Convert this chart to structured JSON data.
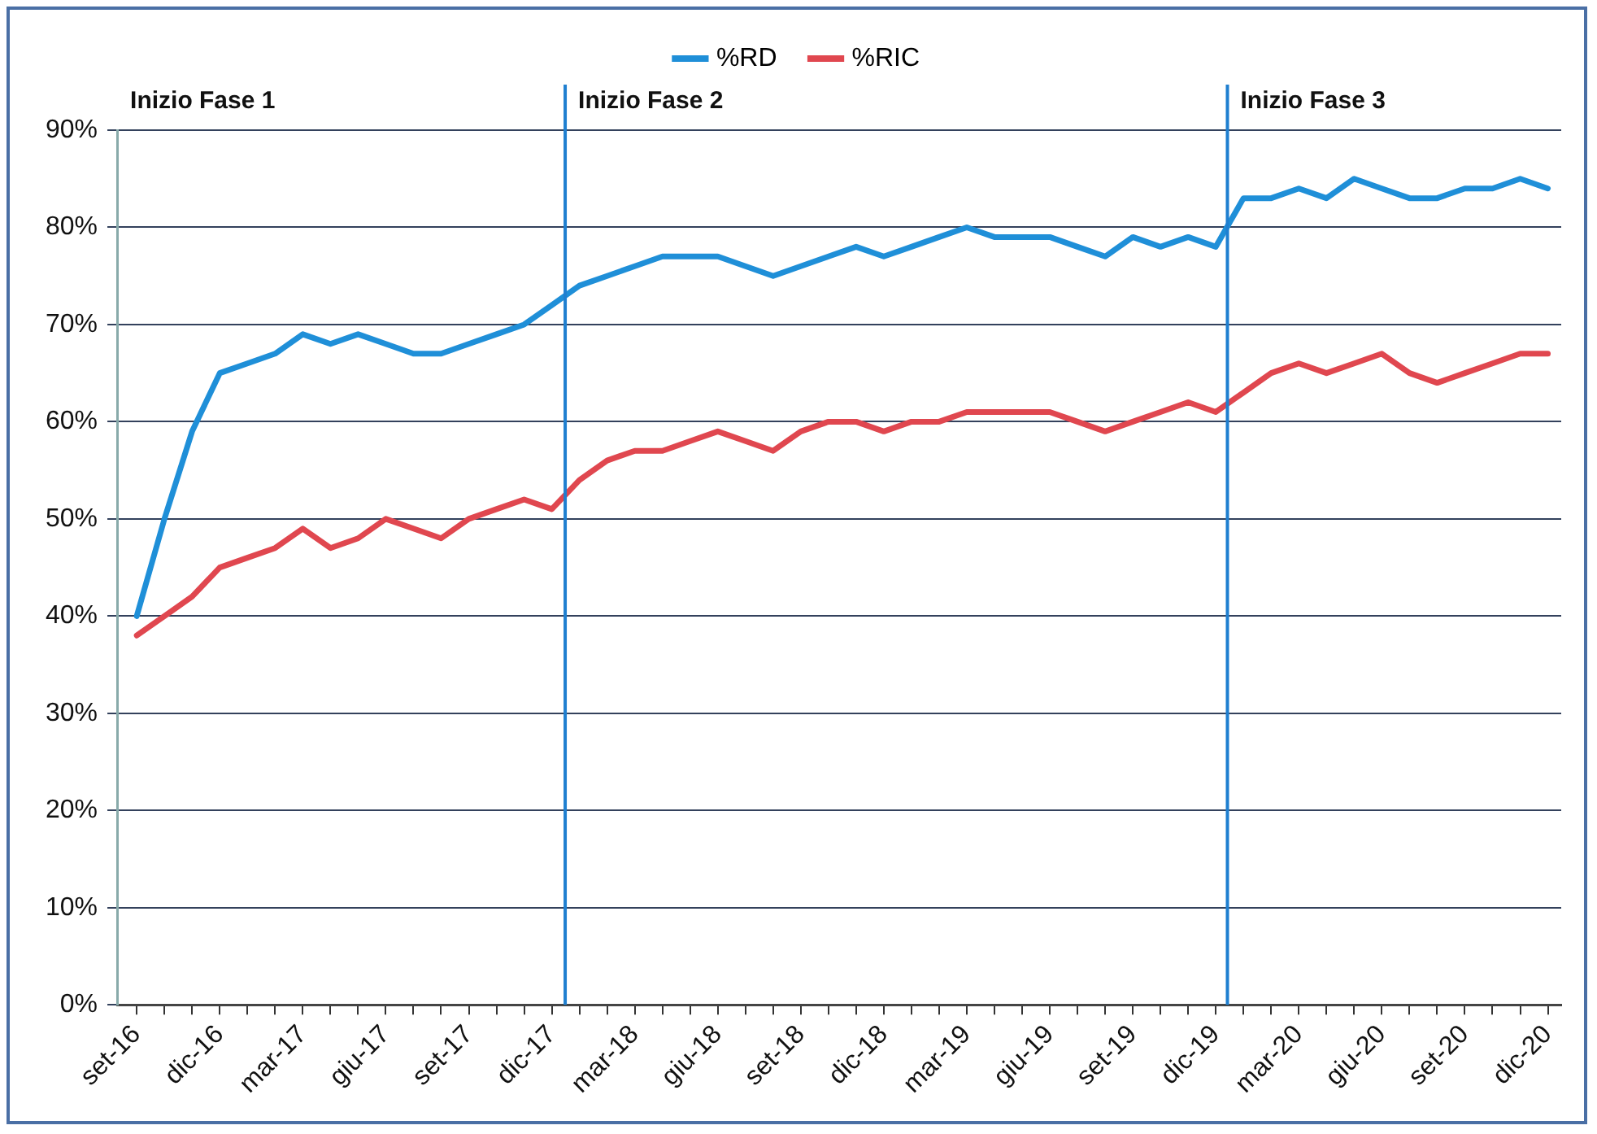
{
  "chart_data": {
    "type": "line",
    "x": [
      "2016-09",
      "2016-10",
      "2016-11",
      "2016-12",
      "2017-01",
      "2017-02",
      "2017-03",
      "2017-04",
      "2017-05",
      "2017-06",
      "2017-07",
      "2017-08",
      "2017-09",
      "2017-10",
      "2017-11",
      "2017-12",
      "2018-01",
      "2018-02",
      "2018-03",
      "2018-04",
      "2018-05",
      "2018-06",
      "2018-07",
      "2018-08",
      "2018-09",
      "2018-10",
      "2018-11",
      "2018-12",
      "2019-01",
      "2019-02",
      "2019-03",
      "2019-04",
      "2019-05",
      "2019-06",
      "2019-07",
      "2019-08",
      "2019-09",
      "2019-10",
      "2019-11",
      "2019-12",
      "2020-01",
      "2020-02",
      "2020-03",
      "2020-04",
      "2020-05",
      "2020-06",
      "2020-07",
      "2020-08",
      "2020-09",
      "2020-10",
      "2020-11",
      "2020-12"
    ],
    "series": [
      {
        "name": "%RD",
        "color": "#1f8fd8",
        "values": [
          40,
          50,
          59,
          65,
          66,
          67,
          69,
          68,
          69,
          68,
          67,
          67,
          68,
          69,
          70,
          72,
          74,
          75,
          76,
          77,
          77,
          77,
          76,
          75,
          76,
          77,
          78,
          77,
          78,
          79,
          80,
          79,
          79,
          79,
          78,
          77,
          79,
          78,
          79,
          78,
          83,
          83,
          84,
          83,
          85,
          84,
          83,
          83,
          84,
          84,
          85,
          84
        ]
      },
      {
        "name": "%RIC",
        "color": "#e0474f",
        "values": [
          38,
          40,
          42,
          45,
          46,
          47,
          49,
          47,
          48,
          50,
          49,
          48,
          50,
          51,
          52,
          51,
          54,
          56,
          57,
          57,
          58,
          59,
          58,
          57,
          59,
          60,
          60,
          59,
          60,
          60,
          61,
          61,
          61,
          61,
          60,
          59,
          60,
          61,
          62,
          61,
          63,
          65,
          66,
          65,
          66,
          67,
          65,
          64,
          65,
          66,
          67,
          67
        ]
      }
    ],
    "xlim": [
      "2016-08-10",
      "2020-12-16"
    ],
    "xticks": [
      {
        "value": "2016-09",
        "label": "set-16"
      },
      {
        "value": "2016-10",
        "label": null
      },
      {
        "value": "2016-11",
        "label": null
      },
      {
        "value": "2016-12",
        "label": "dic-16"
      },
      {
        "value": "2017-01",
        "label": null
      },
      {
        "value": "2017-02",
        "label": null
      },
      {
        "value": "2017-03",
        "label": "mar-17"
      },
      {
        "value": "2017-04",
        "label": null
      },
      {
        "value": "2017-05",
        "label": null
      },
      {
        "value": "2017-06",
        "label": "giu-17"
      },
      {
        "value": "2017-07",
        "label": null
      },
      {
        "value": "2017-08",
        "label": null
      },
      {
        "value": "2017-09",
        "label": "set-17"
      },
      {
        "value": "2017-10",
        "label": null
      },
      {
        "value": "2017-11",
        "label": null
      },
      {
        "value": "2017-12",
        "label": "dic-17"
      },
      {
        "value": "2018-01",
        "label": null
      },
      {
        "value": "2018-02",
        "label": null
      },
      {
        "value": "2018-03",
        "label": "mar-18"
      },
      {
        "value": "2018-04",
        "label": null
      },
      {
        "value": "2018-05",
        "label": null
      },
      {
        "value": "2018-06",
        "label": "giu-18"
      },
      {
        "value": "2018-07",
        "label": null
      },
      {
        "value": "2018-08",
        "label": null
      },
      {
        "value": "2018-09",
        "label": "set-18"
      },
      {
        "value": "2018-10",
        "label": null
      },
      {
        "value": "2018-11",
        "label": null
      },
      {
        "value": "2018-12",
        "label": "dic-18"
      },
      {
        "value": "2019-01",
        "label": null
      },
      {
        "value": "2019-02",
        "label": null
      },
      {
        "value": "2019-03",
        "label": "mar-19"
      },
      {
        "value": "2019-04",
        "label": null
      },
      {
        "value": "2019-05",
        "label": null
      },
      {
        "value": "2019-06",
        "label": "giu-19"
      },
      {
        "value": "2019-07",
        "label": null
      },
      {
        "value": "2019-08",
        "label": null
      },
      {
        "value": "2019-09",
        "label": "set-19"
      },
      {
        "value": "2019-10",
        "label": null
      },
      {
        "value": "2019-11",
        "label": null
      },
      {
        "value": "2019-12",
        "label": "dic-19"
      },
      {
        "value": "2020-01",
        "label": null
      },
      {
        "value": "2020-02",
        "label": null
      },
      {
        "value": "2020-03",
        "label": "mar-20"
      },
      {
        "value": "2020-04",
        "label": null
      },
      {
        "value": "2020-05",
        "label": null
      },
      {
        "value": "2020-06",
        "label": "giu-20"
      },
      {
        "value": "2020-07",
        "label": null
      },
      {
        "value": "2020-08",
        "label": null
      },
      {
        "value": "2020-09",
        "label": "set-20"
      },
      {
        "value": "2020-10",
        "label": null
      },
      {
        "value": "2020-11",
        "label": null
      },
      {
        "value": "2020-12",
        "label": "dic-20"
      }
    ],
    "ylim": [
      0,
      90
    ],
    "yticks": [
      {
        "value": 0,
        "label": "0%"
      },
      {
        "value": 10,
        "label": "10%"
      },
      {
        "value": 20,
        "label": "20%"
      },
      {
        "value": 30,
        "label": "30%"
      },
      {
        "value": 40,
        "label": "40%"
      },
      {
        "value": 50,
        "label": "50%"
      },
      {
        "value": 60,
        "label": "60%"
      },
      {
        "value": 70,
        "label": "70%"
      },
      {
        "value": 80,
        "label": "80%"
      },
      {
        "value": 90,
        "label": "90%"
      }
    ],
    "ref_lines": [
      {
        "axis": "x",
        "value": "2017-12-16",
        "label": "Inizio Fase 2",
        "color": "#1f7fd0"
      },
      {
        "axis": "x",
        "value": "2019-12-14",
        "label": "Inizio Fase 3",
        "color": "#1f7fd0"
      }
    ],
    "annotations": [
      "Inizio Fase 1"
    ],
    "grid": "y",
    "legend": "top",
    "marker": "none",
    "line_style": "solid"
  }
}
